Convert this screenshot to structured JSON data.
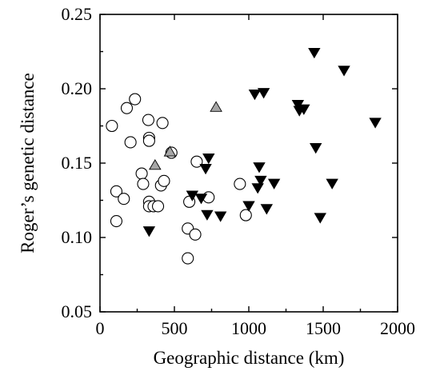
{
  "chart_data": {
    "type": "scatter",
    "title": "",
    "xlabel": "Geographic distance (km)",
    "ylabel": "Roger’s genetic distance",
    "xlim": [
      0,
      2000
    ],
    "ylim": [
      0.05,
      0.25
    ],
    "xticks": [
      0,
      500,
      1000,
      1500,
      2000
    ],
    "yticks": [
      0.05,
      0.1,
      0.15,
      0.2,
      0.25
    ],
    "ytick_labels": [
      "0.05",
      "0.10",
      "0.15",
      "0.20",
      "0.25"
    ],
    "xtick_labels": [
      "0",
      "500",
      "1000",
      "1500",
      "2000"
    ],
    "grid": false,
    "legend": "none",
    "series": [
      {
        "marker": "open-circle",
        "color": "#ffffff",
        "points": [
          [
            80,
            0.175
          ],
          [
            180,
            0.187
          ],
          [
            235,
            0.193
          ],
          [
            205,
            0.164
          ],
          [
            325,
            0.179
          ],
          [
            330,
            0.167
          ],
          [
            330,
            0.165
          ],
          [
            420,
            0.177
          ],
          [
            480,
            0.157
          ],
          [
            650,
            0.151
          ],
          [
            110,
            0.131
          ],
          [
            160,
            0.126
          ],
          [
            110,
            0.111
          ],
          [
            280,
            0.143
          ],
          [
            290,
            0.136
          ],
          [
            330,
            0.124
          ],
          [
            330,
            0.121
          ],
          [
            360,
            0.121
          ],
          [
            390,
            0.121
          ],
          [
            410,
            0.135
          ],
          [
            430,
            0.138
          ],
          [
            600,
            0.124
          ],
          [
            730,
            0.127
          ],
          [
            590,
            0.106
          ],
          [
            640,
            0.102
          ],
          [
            590,
            0.086
          ],
          [
            940,
            0.136
          ],
          [
            980,
            0.115
          ]
        ]
      },
      {
        "marker": "filled-triangle-down",
        "color": "#000000",
        "points": [
          [
            1440,
            0.224
          ],
          [
            1640,
            0.212
          ],
          [
            1040,
            0.196
          ],
          [
            1100,
            0.197
          ],
          [
            1330,
            0.189
          ],
          [
            1340,
            0.185
          ],
          [
            1370,
            0.186
          ],
          [
            1850,
            0.177
          ],
          [
            1450,
            0.16
          ],
          [
            730,
            0.153
          ],
          [
            710,
            0.146
          ],
          [
            1070,
            0.147
          ],
          [
            1080,
            0.138
          ],
          [
            1060,
            0.133
          ],
          [
            1170,
            0.136
          ],
          [
            1560,
            0.136
          ],
          [
            620,
            0.128
          ],
          [
            680,
            0.126
          ],
          [
            1000,
            0.121
          ],
          [
            1120,
            0.119
          ],
          [
            720,
            0.115
          ],
          [
            810,
            0.114
          ],
          [
            1480,
            0.113
          ],
          [
            330,
            0.104
          ]
        ]
      },
      {
        "marker": "grey-triangle-up",
        "color": "#a6a6a6",
        "points": [
          [
            780,
            0.188
          ],
          [
            470,
            0.158
          ],
          [
            370,
            0.149
          ]
        ]
      }
    ]
  }
}
